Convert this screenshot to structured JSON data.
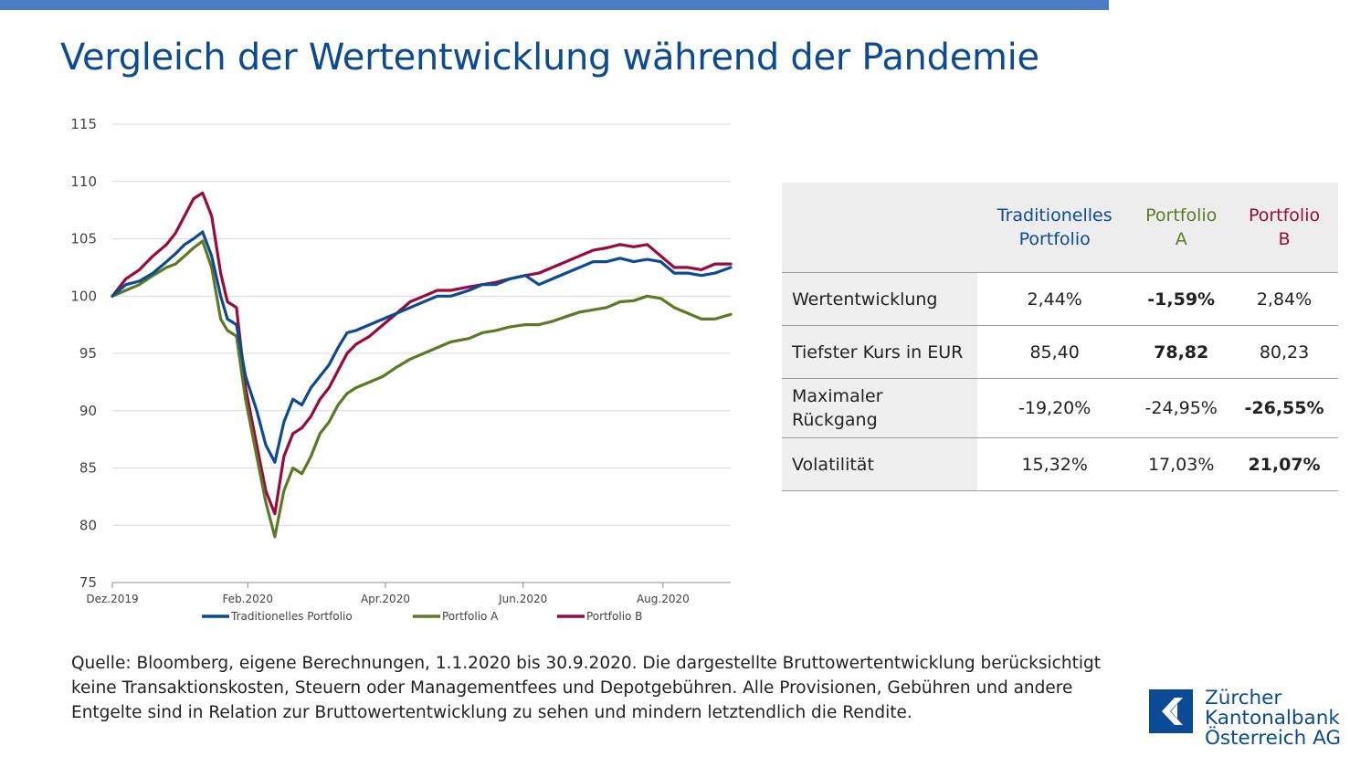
{
  "title": "Vergleich der Wertentwicklung während der Pandemie",
  "colors": {
    "accent_bar": "#4a7cc8",
    "title": "#0b4a94",
    "traditional": "#0b4a94",
    "portfolio_a": "#5b7a23",
    "portfolio_b": "#9a0a3c"
  },
  "chart_data": {
    "type": "line",
    "title": "",
    "xlabel": "",
    "ylabel": "",
    "ylim": [
      75,
      115
    ],
    "yticks": [
      75,
      80,
      85,
      90,
      95,
      100,
      105,
      110,
      115
    ],
    "grid": "horizontal",
    "legend_position": "bottom",
    "x_range": [
      "2019-12-31",
      "2020-09-30"
    ],
    "xticks": [
      {
        "date": "2019-12-31",
        "label": "Dez.2019"
      },
      {
        "date": "2020-02-29",
        "label": "Feb.2020"
      },
      {
        "date": "2020-04-30",
        "label": "Apr.2020"
      },
      {
        "date": "2020-06-30",
        "label": "Jun.2020"
      },
      {
        "date": "2020-08-31",
        "label": "Aug.2020"
      }
    ],
    "series": [
      {
        "name": "Traditionelles Portfolio",
        "color": "#0b4a94",
        "points": [
          [
            "2019-12-31",
            100
          ],
          [
            "2020-01-06",
            101
          ],
          [
            "2020-01-12",
            101.3
          ],
          [
            "2020-01-18",
            102
          ],
          [
            "2020-01-24",
            103
          ],
          [
            "2020-01-28",
            103.7
          ],
          [
            "2020-02-01",
            104.5
          ],
          [
            "2020-02-05",
            105
          ],
          [
            "2020-02-09",
            105.6
          ],
          [
            "2020-02-13",
            103.5
          ],
          [
            "2020-02-17",
            100
          ],
          [
            "2020-02-20",
            98
          ],
          [
            "2020-02-24",
            97.5
          ],
          [
            "2020-02-28",
            93
          ],
          [
            "2020-03-04",
            90
          ],
          [
            "2020-03-08",
            87
          ],
          [
            "2020-03-12",
            85.5
          ],
          [
            "2020-03-16",
            89
          ],
          [
            "2020-03-20",
            91
          ],
          [
            "2020-03-24",
            90.5
          ],
          [
            "2020-03-28",
            92
          ],
          [
            "2020-04-01",
            93
          ],
          [
            "2020-04-05",
            94
          ],
          [
            "2020-04-09",
            95.5
          ],
          [
            "2020-04-13",
            96.8
          ],
          [
            "2020-04-17",
            97
          ],
          [
            "2020-04-23",
            97.5
          ],
          [
            "2020-04-29",
            98
          ],
          [
            "2020-05-05",
            98.5
          ],
          [
            "2020-05-11",
            99
          ],
          [
            "2020-05-17",
            99.5
          ],
          [
            "2020-05-23",
            100
          ],
          [
            "2020-05-29",
            100
          ],
          [
            "2020-06-06",
            100.5
          ],
          [
            "2020-06-12",
            101
          ],
          [
            "2020-06-18",
            101
          ],
          [
            "2020-06-24",
            101.5
          ],
          [
            "2020-07-01",
            101.8
          ],
          [
            "2020-07-07",
            101
          ],
          [
            "2020-07-13",
            101.5
          ],
          [
            "2020-07-19",
            102
          ],
          [
            "2020-07-25",
            102.5
          ],
          [
            "2020-07-31",
            103
          ],
          [
            "2020-08-06",
            103
          ],
          [
            "2020-08-12",
            103.3
          ],
          [
            "2020-08-18",
            103
          ],
          [
            "2020-08-24",
            103.2
          ],
          [
            "2020-08-30",
            103
          ],
          [
            "2020-09-05",
            102
          ],
          [
            "2020-09-11",
            102
          ],
          [
            "2020-09-17",
            101.8
          ],
          [
            "2020-09-23",
            102
          ],
          [
            "2020-09-30",
            102.5
          ]
        ]
      },
      {
        "name": "Portfolio A",
        "color": "#5b7a23",
        "points": [
          [
            "2019-12-31",
            100
          ],
          [
            "2020-01-06",
            100.5
          ],
          [
            "2020-01-12",
            101
          ],
          [
            "2020-01-18",
            101.8
          ],
          [
            "2020-01-24",
            102.5
          ],
          [
            "2020-01-28",
            102.8
          ],
          [
            "2020-02-01",
            103.5
          ],
          [
            "2020-02-05",
            104.2
          ],
          [
            "2020-02-09",
            104.8
          ],
          [
            "2020-02-13",
            102.5
          ],
          [
            "2020-02-17",
            98
          ],
          [
            "2020-02-20",
            97
          ],
          [
            "2020-02-24",
            96.5
          ],
          [
            "2020-02-28",
            91
          ],
          [
            "2020-03-04",
            86
          ],
          [
            "2020-03-08",
            82
          ],
          [
            "2020-03-12",
            79
          ],
          [
            "2020-03-16",
            83
          ],
          [
            "2020-03-20",
            85
          ],
          [
            "2020-03-24",
            84.5
          ],
          [
            "2020-03-28",
            86
          ],
          [
            "2020-04-01",
            88
          ],
          [
            "2020-04-05",
            89
          ],
          [
            "2020-04-09",
            90.5
          ],
          [
            "2020-04-13",
            91.5
          ],
          [
            "2020-04-17",
            92
          ],
          [
            "2020-04-23",
            92.5
          ],
          [
            "2020-04-29",
            93
          ],
          [
            "2020-05-05",
            93.8
          ],
          [
            "2020-05-11",
            94.5
          ],
          [
            "2020-05-17",
            95
          ],
          [
            "2020-05-23",
            95.5
          ],
          [
            "2020-05-29",
            96
          ],
          [
            "2020-06-06",
            96.3
          ],
          [
            "2020-06-12",
            96.8
          ],
          [
            "2020-06-18",
            97
          ],
          [
            "2020-06-24",
            97.3
          ],
          [
            "2020-07-01",
            97.5
          ],
          [
            "2020-07-07",
            97.5
          ],
          [
            "2020-07-13",
            97.8
          ],
          [
            "2020-07-19",
            98.2
          ],
          [
            "2020-07-25",
            98.6
          ],
          [
            "2020-07-31",
            98.8
          ],
          [
            "2020-08-06",
            99
          ],
          [
            "2020-08-12",
            99.5
          ],
          [
            "2020-08-18",
            99.6
          ],
          [
            "2020-08-24",
            100
          ],
          [
            "2020-08-30",
            99.8
          ],
          [
            "2020-09-05",
            99
          ],
          [
            "2020-09-11",
            98.5
          ],
          [
            "2020-09-17",
            98
          ],
          [
            "2020-09-23",
            98
          ],
          [
            "2020-09-30",
            98.4
          ]
        ]
      },
      {
        "name": "Portfolio B",
        "color": "#9a0a3c",
        "points": [
          [
            "2019-12-31",
            100
          ],
          [
            "2020-01-06",
            101.5
          ],
          [
            "2020-01-12",
            102.3
          ],
          [
            "2020-01-18",
            103.5
          ],
          [
            "2020-01-24",
            104.5
          ],
          [
            "2020-01-28",
            105.5
          ],
          [
            "2020-02-01",
            107
          ],
          [
            "2020-02-05",
            108.5
          ],
          [
            "2020-02-09",
            109
          ],
          [
            "2020-02-13",
            107
          ],
          [
            "2020-02-17",
            102
          ],
          [
            "2020-02-20",
            99.5
          ],
          [
            "2020-02-24",
            99
          ],
          [
            "2020-02-28",
            92
          ],
          [
            "2020-03-04",
            87
          ],
          [
            "2020-03-08",
            83
          ],
          [
            "2020-03-12",
            81
          ],
          [
            "2020-03-16",
            86
          ],
          [
            "2020-03-20",
            88
          ],
          [
            "2020-03-24",
            88.5
          ],
          [
            "2020-03-28",
            89.5
          ],
          [
            "2020-04-01",
            91
          ],
          [
            "2020-04-05",
            92
          ],
          [
            "2020-04-09",
            93.5
          ],
          [
            "2020-04-13",
            95
          ],
          [
            "2020-04-17",
            95.8
          ],
          [
            "2020-04-23",
            96.5
          ],
          [
            "2020-04-29",
            97.5
          ],
          [
            "2020-05-05",
            98.5
          ],
          [
            "2020-05-11",
            99.5
          ],
          [
            "2020-05-17",
            100
          ],
          [
            "2020-05-23",
            100.5
          ],
          [
            "2020-05-29",
            100.5
          ],
          [
            "2020-06-06",
            100.8
          ],
          [
            "2020-06-12",
            101
          ],
          [
            "2020-06-18",
            101.2
          ],
          [
            "2020-06-24",
            101.5
          ],
          [
            "2020-07-01",
            101.8
          ],
          [
            "2020-07-07",
            102
          ],
          [
            "2020-07-13",
            102.5
          ],
          [
            "2020-07-19",
            103
          ],
          [
            "2020-07-25",
            103.5
          ],
          [
            "2020-07-31",
            104
          ],
          [
            "2020-08-06",
            104.2
          ],
          [
            "2020-08-12",
            104.5
          ],
          [
            "2020-08-18",
            104.3
          ],
          [
            "2020-08-24",
            104.5
          ],
          [
            "2020-08-30",
            103.5
          ],
          [
            "2020-09-05",
            102.5
          ],
          [
            "2020-09-11",
            102.5
          ],
          [
            "2020-09-17",
            102.3
          ],
          [
            "2020-09-23",
            102.8
          ],
          [
            "2020-09-30",
            102.8
          ]
        ]
      }
    ]
  },
  "table": {
    "columns": [
      {
        "line1": "Traditionelles",
        "line2": "Portfolio",
        "color": "#0b4a94"
      },
      {
        "line1": "Portfolio",
        "line2": "A",
        "color": "#5b7a23"
      },
      {
        "line1": "Portfolio",
        "line2": "B",
        "color": "#9a0a3c"
      }
    ],
    "rows": [
      {
        "label": "Wertentwicklung",
        "values": [
          "2,44%",
          "-1,59%",
          "2,84%"
        ],
        "bold": [
          false,
          true,
          false
        ]
      },
      {
        "label": "Tiefster Kurs in EUR",
        "values": [
          "85,40",
          "78,82",
          "80,23"
        ],
        "bold": [
          false,
          true,
          false
        ]
      },
      {
        "label_line1": "Maximaler",
        "label_line2": "Rückgang",
        "values": [
          "-19,20%",
          "-24,95%",
          "-26,55%"
        ],
        "bold": [
          false,
          false,
          true
        ]
      },
      {
        "label": "Volatilität",
        "values": [
          "15,32%",
          "17,03%",
          "21,07%"
        ],
        "bold": [
          false,
          false,
          true
        ]
      }
    ]
  },
  "source_note": "Quelle: Bloomberg, eigene Berechnungen, 1.1.2020 bis 30.9.2020. Die dargestellte Bruttowertentwicklung berücksichtigt keine Transaktionskosten, Steuern oder Managementfees und Depotgebühren. Alle Provisionen, Gebühren und andere Entgelte sind in Relation zur Bruttowertentwicklung zu sehen und mindern letztendlich die Rendite.",
  "logo": {
    "line1": "Zürcher",
    "line2": "Kantonalbank",
    "line3": "Österreich AG",
    "icon": "zkb-shield-logo-icon"
  }
}
